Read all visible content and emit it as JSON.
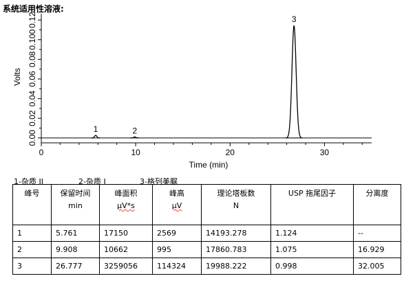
{
  "heading": "系统适用性溶液:",
  "chart_data": {
    "type": "line",
    "xlabel": "Time (min)",
    "ylabel": "Volts",
    "xlim": [
      0,
      35
    ],
    "ylim": [
      -0.005,
      0.125
    ],
    "x_ticks": [
      "0",
      "10",
      "20",
      "30"
    ],
    "y_ticks": [
      "0.00",
      "0.02",
      "0.04",
      "0.06",
      "0.08",
      "0.100",
      "0.12"
    ],
    "series": [
      {
        "peaks": [
          {
            "label": "1",
            "retention_time": 5.761,
            "height_volts": 0.0026
          },
          {
            "label": "2",
            "retention_time": 9.908,
            "height_volts": 0.001
          },
          {
            "label": "3",
            "retention_time": 26.777,
            "height_volts": 0.1145
          }
        ]
      }
    ]
  },
  "legend": [
    "1-杂质 II",
    "2-杂质 I",
    "3-格列美脲"
  ],
  "table": {
    "headers": [
      {
        "line1": "峰号",
        "line2": ""
      },
      {
        "line1": "保留时间",
        "line2": "min"
      },
      {
        "line1": "峰面积",
        "line2": "μV*s"
      },
      {
        "line1": "峰高",
        "line2": "μV"
      },
      {
        "line1": "理论塔板数",
        "line2": "N"
      },
      {
        "line1": "USP 拖尾因子",
        "line2": ""
      },
      {
        "line1": "分离度",
        "line2": ""
      }
    ],
    "rows": [
      [
        "1",
        "5.761",
        "17150",
        "2569",
        "14193.278",
        "1.124",
        "--"
      ],
      [
        "2",
        "9.908",
        "10662",
        "995",
        "17860.783",
        "1.075",
        "16.929"
      ],
      [
        "3",
        "26.777",
        "3259056",
        "114324",
        "19988.222",
        "0.998",
        "32.005"
      ]
    ]
  }
}
